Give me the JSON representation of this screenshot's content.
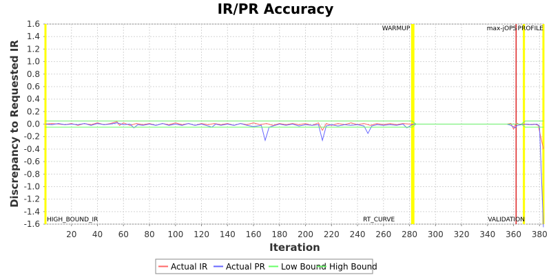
{
  "chart_data": {
    "type": "line",
    "title": "IR/PR Accuracy",
    "xlabel": "Iteration",
    "ylabel": "Discrepancy to Requested IR",
    "xlim": [
      0,
      383
    ],
    "ylim": [
      -1.6,
      1.6
    ],
    "xticks": [
      20,
      40,
      60,
      80,
      100,
      120,
      140,
      160,
      180,
      200,
      220,
      240,
      260,
      280,
      300,
      320,
      340,
      360,
      380
    ],
    "yticks": [
      "1.6",
      "1.4",
      "1.2",
      "1.0",
      "0.8",
      "0.6",
      "0.4",
      "0.2",
      "0.0",
      "-0.2",
      "-0.4",
      "-0.6",
      "-0.8",
      "-1.0",
      "-1.2",
      "-1.4",
      "-1.6"
    ],
    "grid": true,
    "legend_position": "bottom",
    "series": [
      {
        "name": "Actual IR",
        "color": "#ff6666",
        "points": [
          [
            0,
            0.0
          ],
          [
            5,
            0.01
          ],
          [
            10,
            0.0
          ],
          [
            15,
            -0.01
          ],
          [
            20,
            0.01
          ],
          [
            25,
            -0.02
          ],
          [
            30,
            0.01
          ],
          [
            35,
            -0.01
          ],
          [
            40,
            0.02
          ],
          [
            45,
            -0.01
          ],
          [
            50,
            0.01
          ],
          [
            55,
            0.04
          ],
          [
            57,
            -0.02
          ],
          [
            60,
            0.02
          ],
          [
            65,
            -0.02
          ],
          [
            70,
            0.01
          ],
          [
            75,
            -0.01
          ],
          [
            80,
            0.01
          ],
          [
            85,
            -0.02
          ],
          [
            90,
            0.01
          ],
          [
            95,
            -0.01
          ],
          [
            100,
            0.02
          ],
          [
            105,
            -0.01
          ],
          [
            110,
            0.01
          ],
          [
            115,
            -0.02
          ],
          [
            120,
            0.01
          ],
          [
            125,
            -0.01
          ],
          [
            130,
            0.01
          ],
          [
            135,
            -0.01
          ],
          [
            140,
            0.01
          ],
          [
            145,
            -0.02
          ],
          [
            150,
            0.01
          ],
          [
            155,
            -0.01
          ],
          [
            160,
            0.02
          ],
          [
            165,
            -0.01
          ],
          [
            170,
            0.01
          ],
          [
            175,
            -0.02
          ],
          [
            180,
            0.01
          ],
          [
            185,
            -0.01
          ],
          [
            190,
            0.01
          ],
          [
            195,
            -0.01
          ],
          [
            200,
            0.01
          ],
          [
            205,
            -0.02
          ],
          [
            210,
            0.02
          ],
          [
            213,
            -0.1
          ],
          [
            216,
            0.01
          ],
          [
            220,
            -0.02
          ],
          [
            225,
            0.01
          ],
          [
            230,
            -0.01
          ],
          [
            235,
            0.02
          ],
          [
            240,
            -0.01
          ],
          [
            245,
            0.01
          ],
          [
            250,
            -0.02
          ],
          [
            255,
            0.01
          ],
          [
            260,
            -0.01
          ],
          [
            265,
            0.01
          ],
          [
            270,
            -0.01
          ],
          [
            275,
            0.01
          ],
          [
            280,
            0.0
          ],
          [
            283,
            0.0
          ],
          [
            290,
            0.0
          ],
          [
            300,
            0.0
          ],
          [
            310,
            0.0
          ],
          [
            320,
            0.0
          ],
          [
            330,
            0.0
          ],
          [
            340,
            0.0
          ],
          [
            350,
            0.0
          ],
          [
            355,
            0.0
          ],
          [
            358,
            0.01
          ],
          [
            360,
            -0.08
          ],
          [
            362,
            0.02
          ],
          [
            365,
            -0.01
          ],
          [
            368,
            0.0
          ],
          [
            372,
            -0.01
          ],
          [
            376,
            0.0
          ],
          [
            379,
            -0.02
          ],
          [
            383,
            -0.4
          ]
        ]
      },
      {
        "name": "Actual PR",
        "color": "#6666ff",
        "points": [
          [
            0,
            0.0
          ],
          [
            5,
            -0.01
          ],
          [
            10,
            0.01
          ],
          [
            15,
            -0.01
          ],
          [
            20,
            0.0
          ],
          [
            25,
            -0.01
          ],
          [
            30,
            0.01
          ],
          [
            35,
            -0.02
          ],
          [
            40,
            0.01
          ],
          [
            45,
            -0.01
          ],
          [
            50,
            0.0
          ],
          [
            55,
            0.02
          ],
          [
            60,
            -0.01
          ],
          [
            65,
            0.0
          ],
          [
            68,
            -0.06
          ],
          [
            71,
            -0.01
          ],
          [
            75,
            -0.02
          ],
          [
            80,
            0.0
          ],
          [
            85,
            -0.02
          ],
          [
            90,
            0.01
          ],
          [
            95,
            -0.02
          ],
          [
            100,
            0.0
          ],
          [
            105,
            -0.02
          ],
          [
            110,
            0.01
          ],
          [
            115,
            -0.02
          ],
          [
            120,
            0.0
          ],
          [
            125,
            -0.03
          ],
          [
            128,
            -0.05
          ],
          [
            131,
            0.0
          ],
          [
            135,
            -0.02
          ],
          [
            140,
            0.0
          ],
          [
            145,
            -0.02
          ],
          [
            150,
            0.01
          ],
          [
            155,
            -0.02
          ],
          [
            160,
            -0.04
          ],
          [
            163,
            -0.03
          ],
          [
            166,
            -0.02
          ],
          [
            169,
            -0.26
          ],
          [
            172,
            -0.05
          ],
          [
            175,
            -0.03
          ],
          [
            180,
            0.0
          ],
          [
            185,
            -0.02
          ],
          [
            190,
            0.0
          ],
          [
            195,
            -0.03
          ],
          [
            200,
            -0.01
          ],
          [
            205,
            -0.02
          ],
          [
            210,
            -0.01
          ],
          [
            213,
            -0.26
          ],
          [
            216,
            -0.03
          ],
          [
            220,
            -0.01
          ],
          [
            225,
            -0.03
          ],
          [
            230,
            -0.01
          ],
          [
            235,
            -0.02
          ],
          [
            240,
            -0.01
          ],
          [
            245,
            -0.03
          ],
          [
            248,
            -0.15
          ],
          [
            251,
            -0.03
          ],
          [
            255,
            -0.01
          ],
          [
            260,
            -0.02
          ],
          [
            265,
            -0.01
          ],
          [
            270,
            -0.02
          ],
          [
            275,
            0.0
          ],
          [
            278,
            -0.06
          ],
          [
            281,
            -0.02
          ],
          [
            283,
            0.0
          ],
          [
            290,
            0.0
          ],
          [
            300,
            0.0
          ],
          [
            310,
            0.0
          ],
          [
            320,
            0.0
          ],
          [
            330,
            0.0
          ],
          [
            340,
            0.0
          ],
          [
            350,
            0.0
          ],
          [
            355,
            0.0
          ],
          [
            358,
            -0.02
          ],
          [
            361,
            -0.06
          ],
          [
            363,
            -0.02
          ],
          [
            366,
            -0.01
          ],
          [
            370,
            0.0
          ],
          [
            374,
            -0.01
          ],
          [
            378,
            0.0
          ],
          [
            380,
            -0.03
          ],
          [
            383,
            -1.65
          ]
        ]
      },
      {
        "name": "Low Bound",
        "color": "#66ff66",
        "points": [
          [
            0,
            -0.05
          ],
          [
            282,
            -0.05
          ],
          [
            285,
            0.0
          ],
          [
            366,
            0.0
          ],
          [
            369,
            -0.05
          ],
          [
            383,
            -0.05
          ]
        ]
      },
      {
        "name": "High Bound",
        "color": "#66ee66",
        "points": [
          [
            0,
            0.05
          ],
          [
            282,
            0.05
          ],
          [
            285,
            0.0
          ],
          [
            366,
            0.0
          ],
          [
            369,
            0.05
          ],
          [
            383,
            0.05
          ]
        ]
      }
    ],
    "markers": [
      {
        "label": "HIGH_BOUND_IR",
        "x": 0,
        "color": "#ffff00",
        "position": "bottom"
      },
      {
        "label": "WARMUP",
        "x": 282,
        "color": "#ffff00",
        "position": "top"
      },
      {
        "label": "RT_CURVE",
        "x": 283,
        "color": "#ffff00",
        "position": "bottom"
      },
      {
        "label": "max-jOPS",
        "x": 362,
        "color": "#dd2222",
        "position": "top"
      },
      {
        "label": "PROFILE",
        "x": 368,
        "color": "#ffff00",
        "position": "top"
      },
      {
        "label": "VALIDATION",
        "x": 383,
        "color": "#ffff00",
        "position": "bottom"
      }
    ]
  }
}
